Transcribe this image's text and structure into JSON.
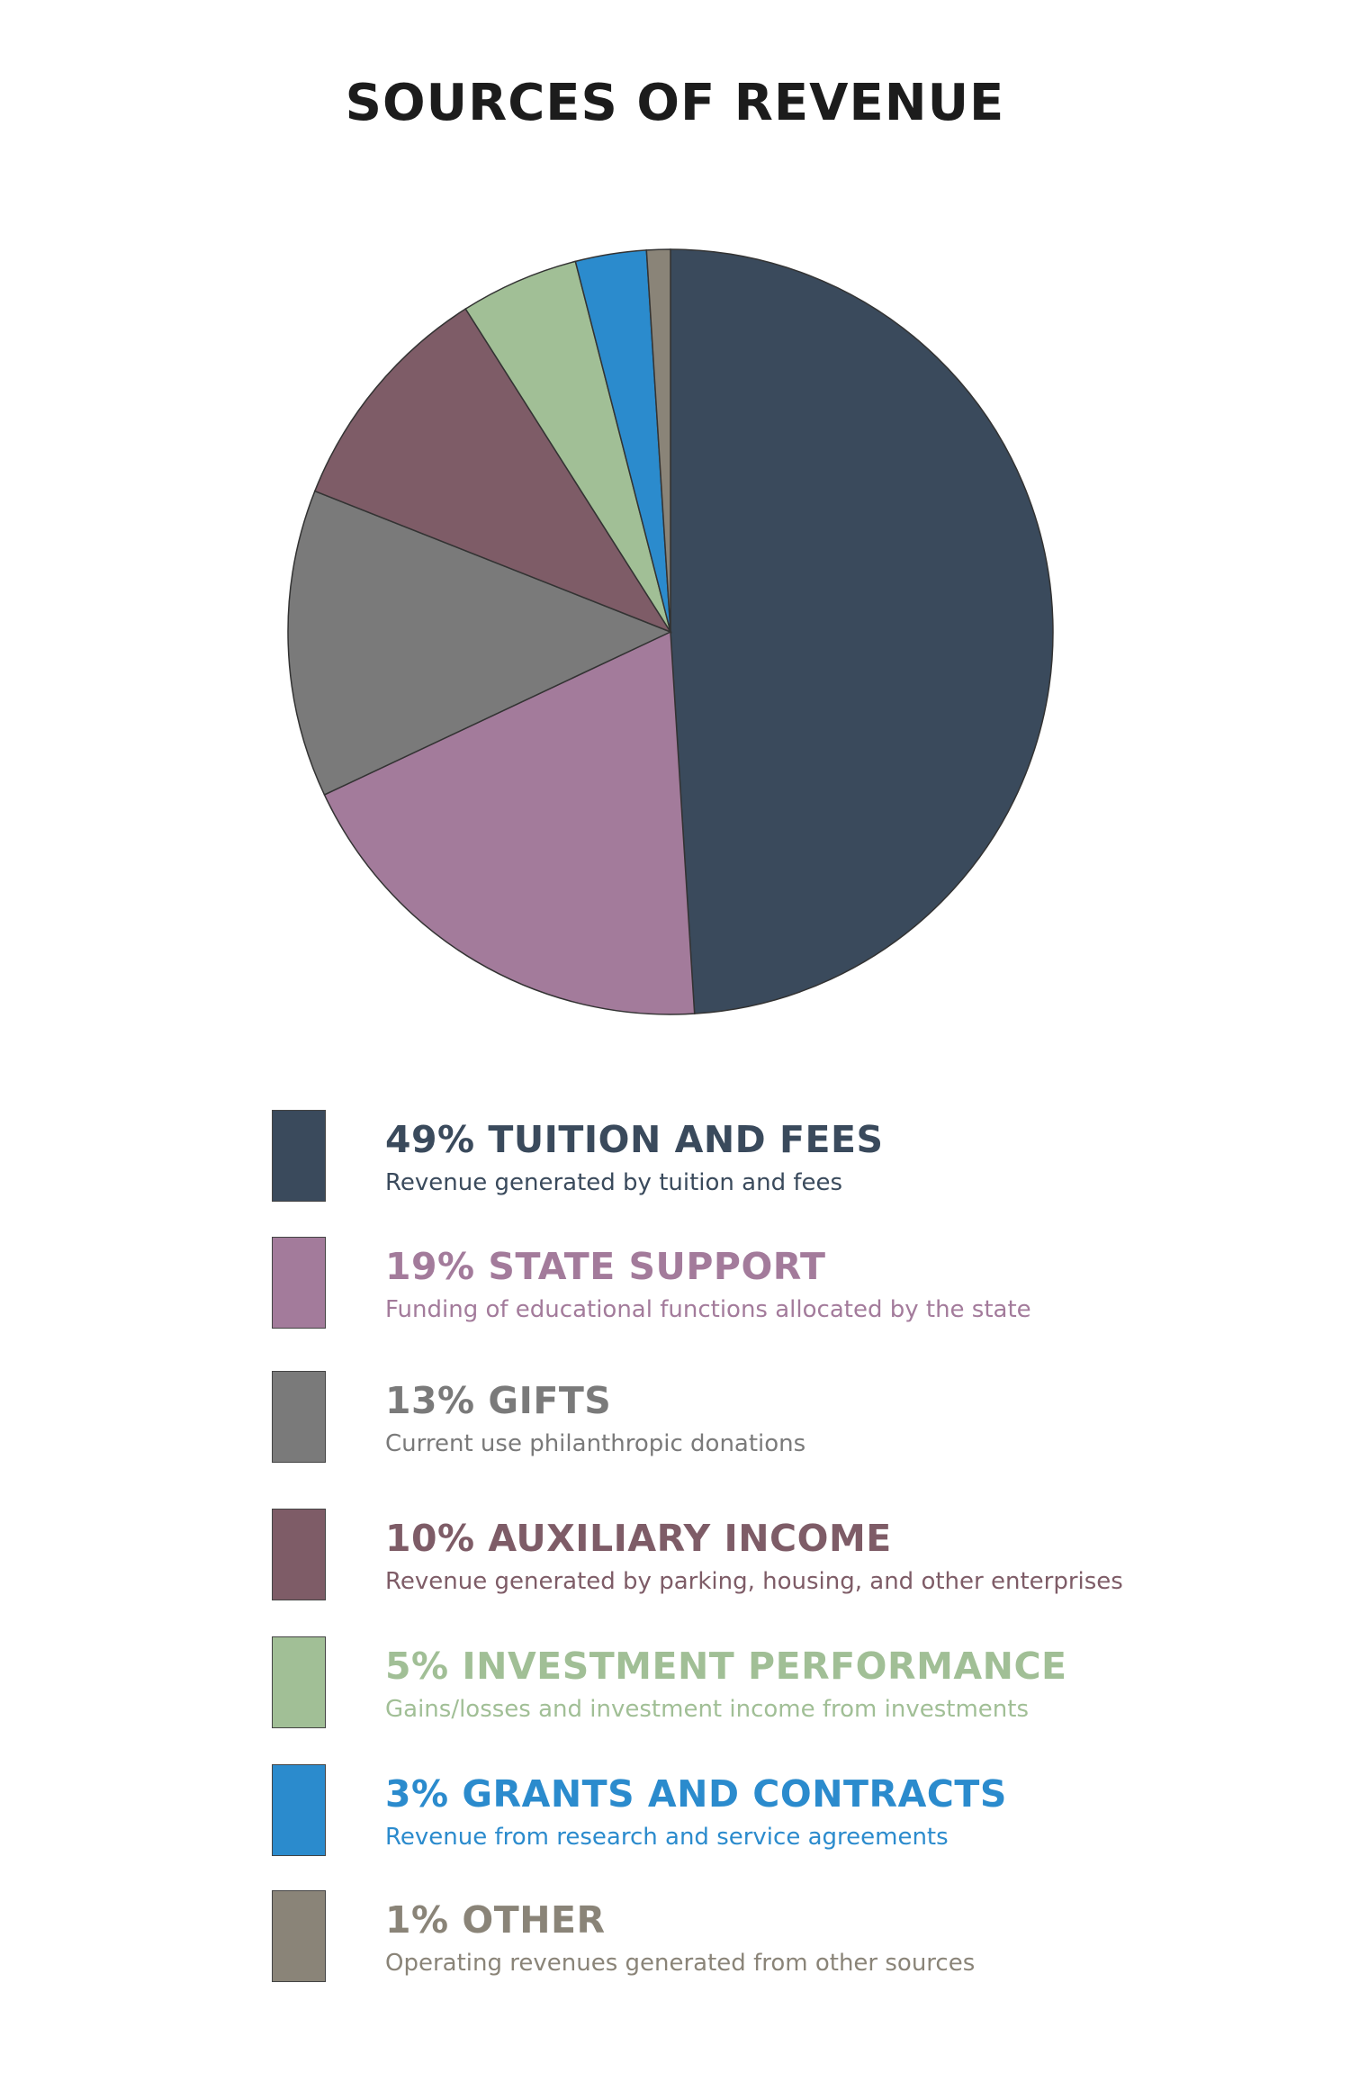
{
  "page": {
    "title": "SOURCES OF REVENUE"
  },
  "chart_data": {
    "type": "pie",
    "title": "SOURCES OF REVENUE",
    "slices": [
      {
        "label": "TUITION AND FEES",
        "value": 49,
        "percent_label": "49% TUITION AND FEES",
        "description": "Revenue generated by tuition and fees",
        "color": "#3a4a5c"
      },
      {
        "label": "STATE SUPPORT",
        "value": 19,
        "percent_label": "19% STATE SUPPORT",
        "description": "Funding of educational functions allocated by the state",
        "color": "#a37b9b"
      },
      {
        "label": "GIFTS",
        "value": 13,
        "percent_label": "13% GIFTS",
        "description": "Current use philanthropic donations",
        "color": "#7a7a7a"
      },
      {
        "label": "AUXILIARY INCOME",
        "value": 10,
        "percent_label": "10% AUXILIARY INCOME",
        "description": "Revenue generated by parking, housing, and other enterprises",
        "color": "#7e5c67"
      },
      {
        "label": "INVESTMENT PERFORMANCE",
        "value": 5,
        "percent_label": "5% INVESTMENT PERFORMANCE",
        "description": "Gains/losses and investment income from investments",
        "color": "#a1bf96"
      },
      {
        "label": "GRANTS AND CONTRACTS",
        "value": 3,
        "percent_label": "3% GRANTS AND CONTRACTS",
        "description": "Revenue from research and service agreements",
        "color": "#2b8bcd"
      },
      {
        "label": "OTHER",
        "value": 1,
        "percent_label": "1% OTHER",
        "description": "Operating revenues generated from other sources",
        "color": "#8a8478"
      }
    ],
    "legend_position": "bottom"
  }
}
